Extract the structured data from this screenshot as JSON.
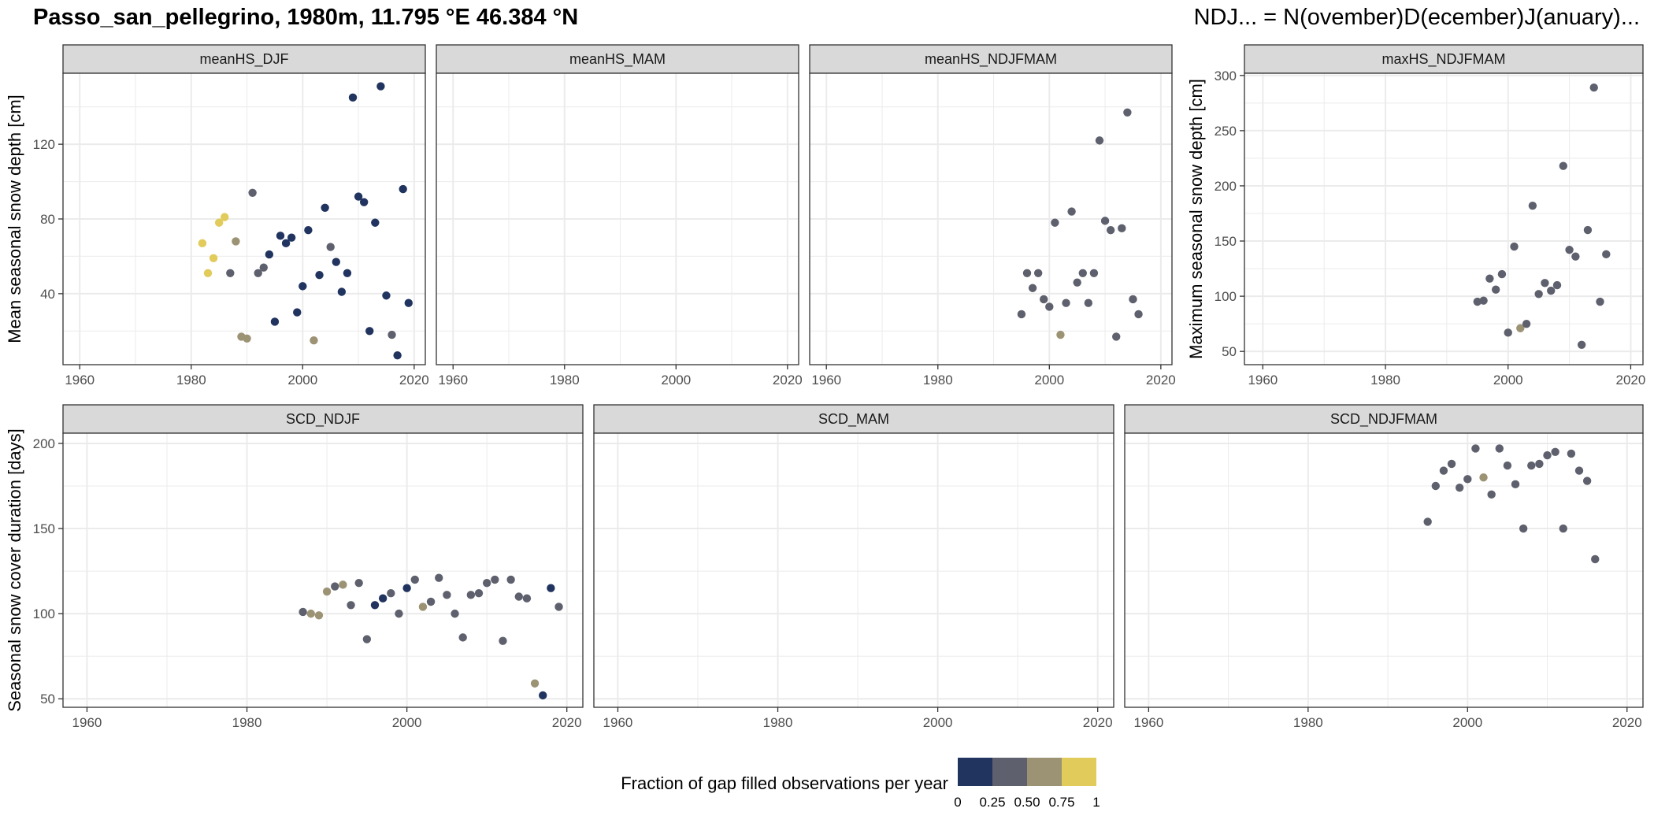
{
  "title": "Passo_san_pellegrino, 1980m, 11.795 °E 46.384 °N",
  "note": "NDJ... = N(ovember)D(ecember)J(anuary)...",
  "legend": {
    "title": "Fraction of gap filled observations per year",
    "ticks": [
      "0",
      "0.25",
      "0.50",
      "0.75",
      "1"
    ],
    "colors": [
      "#213460",
      "#5e616d",
      "#9c9274",
      "#e1cb5b"
    ]
  },
  "colors": {
    "c0": "#213460",
    "c1": "#5e616d",
    "c2": "#9c9274",
    "c3": "#e1cb5b",
    "strip_bg": "#d9d9d9",
    "grid": "#ebebeb"
  },
  "chart_data": [
    {
      "type": "scatter",
      "panel": "meanHS_DJF",
      "ylabel": "Mean seasonal snow depth [cm]",
      "xlim": [
        1957,
        2022
      ],
      "ylim": [
        2,
        158
      ],
      "xticks": [
        1960,
        1980,
        2000,
        2020
      ],
      "yticks": [
        40,
        80,
        120
      ],
      "points": [
        {
          "x": 1982,
          "y": 67,
          "c": 3
        },
        {
          "x": 1983,
          "y": 51,
          "c": 3
        },
        {
          "x": 1984,
          "y": 59,
          "c": 3
        },
        {
          "x": 1985,
          "y": 78,
          "c": 3
        },
        {
          "x": 1986,
          "y": 81,
          "c": 3
        },
        {
          "x": 1987,
          "y": 51,
          "c": 1
        },
        {
          "x": 1988,
          "y": 68,
          "c": 2
        },
        {
          "x": 1989,
          "y": 17,
          "c": 2
        },
        {
          "x": 1990,
          "y": 16,
          "c": 2
        },
        {
          "x": 1991,
          "y": 94,
          "c": 1
        },
        {
          "x": 1992,
          "y": 51,
          "c": 1
        },
        {
          "x": 1993,
          "y": 54,
          "c": 1
        },
        {
          "x": 1994,
          "y": 61,
          "c": 0
        },
        {
          "x": 1995,
          "y": 25,
          "c": 0
        },
        {
          "x": 1996,
          "y": 71,
          "c": 0
        },
        {
          "x": 1997,
          "y": 67,
          "c": 0
        },
        {
          "x": 1998,
          "y": 70,
          "c": 0
        },
        {
          "x": 1999,
          "y": 30,
          "c": 0
        },
        {
          "x": 2000,
          "y": 44,
          "c": 0
        },
        {
          "x": 2001,
          "y": 74,
          "c": 0
        },
        {
          "x": 2002,
          "y": 15,
          "c": 2
        },
        {
          "x": 2003,
          "y": 50,
          "c": 0
        },
        {
          "x": 2004,
          "y": 86,
          "c": 0
        },
        {
          "x": 2005,
          "y": 65,
          "c": 1
        },
        {
          "x": 2006,
          "y": 57,
          "c": 0
        },
        {
          "x": 2007,
          "y": 41,
          "c": 0
        },
        {
          "x": 2008,
          "y": 51,
          "c": 0
        },
        {
          "x": 2009,
          "y": 145,
          "c": 0
        },
        {
          "x": 2010,
          "y": 92,
          "c": 0
        },
        {
          "x": 2011,
          "y": 89,
          "c": 0
        },
        {
          "x": 2012,
          "y": 20,
          "c": 0
        },
        {
          "x": 2013,
          "y": 78,
          "c": 0
        },
        {
          "x": 2014,
          "y": 151,
          "c": 0
        },
        {
          "x": 2015,
          "y": 39,
          "c": 0
        },
        {
          "x": 2016,
          "y": 18,
          "c": 1
        },
        {
          "x": 2017,
          "y": 7,
          "c": 0
        },
        {
          "x": 2018,
          "y": 96,
          "c": 0
        },
        {
          "x": 2019,
          "y": 35,
          "c": 0
        }
      ]
    },
    {
      "type": "scatter",
      "panel": "meanHS_MAM",
      "xlim": [
        1957,
        2022
      ],
      "ylim": [
        2,
        158
      ],
      "xticks": [
        1960,
        1980,
        2000,
        2020
      ],
      "yticks": [
        40,
        80,
        120
      ],
      "points": []
    },
    {
      "type": "scatter",
      "panel": "meanHS_NDJFMAM",
      "xlim": [
        1957,
        2022
      ],
      "ylim": [
        2,
        158
      ],
      "xticks": [
        1960,
        1980,
        2000,
        2020
      ],
      "yticks": [
        40,
        80,
        120
      ],
      "points": [
        {
          "x": 1995,
          "y": 29,
          "c": 1
        },
        {
          "x": 1996,
          "y": 51,
          "c": 1
        },
        {
          "x": 1997,
          "y": 43,
          "c": 1
        },
        {
          "x": 1998,
          "y": 51,
          "c": 1
        },
        {
          "x": 1999,
          "y": 37,
          "c": 1
        },
        {
          "x": 2000,
          "y": 33,
          "c": 1
        },
        {
          "x": 2001,
          "y": 78,
          "c": 1
        },
        {
          "x": 2002,
          "y": 18,
          "c": 2
        },
        {
          "x": 2003,
          "y": 35,
          "c": 1
        },
        {
          "x": 2004,
          "y": 84,
          "c": 1
        },
        {
          "x": 2005,
          "y": 46,
          "c": 1
        },
        {
          "x": 2006,
          "y": 51,
          "c": 1
        },
        {
          "x": 2007,
          "y": 35,
          "c": 1
        },
        {
          "x": 2008,
          "y": 51,
          "c": 1
        },
        {
          "x": 2009,
          "y": 122,
          "c": 1
        },
        {
          "x": 2010,
          "y": 79,
          "c": 1
        },
        {
          "x": 2011,
          "y": 74,
          "c": 1
        },
        {
          "x": 2012,
          "y": 17,
          "c": 1
        },
        {
          "x": 2013,
          "y": 75,
          "c": 1
        },
        {
          "x": 2014,
          "y": 137,
          "c": 1
        },
        {
          "x": 2015,
          "y": 37,
          "c": 1
        },
        {
          "x": 2016,
          "y": 29,
          "c": 1
        }
      ]
    },
    {
      "type": "scatter",
      "panel": "maxHS_NDJFMAM",
      "ylabel": "Maximum seasonal snow depth [cm]",
      "xlim": [
        1957,
        2022
      ],
      "ylim": [
        38,
        302
      ],
      "xticks": [
        1960,
        1980,
        2000,
        2020
      ],
      "yticks": [
        50,
        100,
        150,
        200,
        250,
        300
      ],
      "points": [
        {
          "x": 1995,
          "y": 95,
          "c": 1
        },
        {
          "x": 1996,
          "y": 96,
          "c": 1
        },
        {
          "x": 1997,
          "y": 116,
          "c": 1
        },
        {
          "x": 1998,
          "y": 106,
          "c": 1
        },
        {
          "x": 1999,
          "y": 120,
          "c": 1
        },
        {
          "x": 2000,
          "y": 67,
          "c": 1
        },
        {
          "x": 2001,
          "y": 145,
          "c": 1
        },
        {
          "x": 2002,
          "y": 71,
          "c": 2
        },
        {
          "x": 2003,
          "y": 75,
          "c": 1
        },
        {
          "x": 2004,
          "y": 182,
          "c": 1
        },
        {
          "x": 2005,
          "y": 102,
          "c": 1
        },
        {
          "x": 2006,
          "y": 112,
          "c": 1
        },
        {
          "x": 2007,
          "y": 105,
          "c": 1
        },
        {
          "x": 2008,
          "y": 110,
          "c": 1
        },
        {
          "x": 2009,
          "y": 218,
          "c": 1
        },
        {
          "x": 2010,
          "y": 142,
          "c": 1
        },
        {
          "x": 2011,
          "y": 136,
          "c": 1
        },
        {
          "x": 2012,
          "y": 56,
          "c": 1
        },
        {
          "x": 2013,
          "y": 160,
          "c": 1
        },
        {
          "x": 2014,
          "y": 289,
          "c": 1
        },
        {
          "x": 2015,
          "y": 95,
          "c": 1
        },
        {
          "x": 2016,
          "y": 138,
          "c": 1
        }
      ]
    },
    {
      "type": "scatter",
      "panel": "SCD_NDJF",
      "ylabel": "Seasonal snow cover duration [days]",
      "xlim": [
        1957,
        2022
      ],
      "ylim": [
        45,
        206
      ],
      "xticks": [
        1960,
        1980,
        2000,
        2020
      ],
      "yticks": [
        50,
        100,
        150,
        200
      ],
      "points": [
        {
          "x": 1987,
          "y": 101,
          "c": 1
        },
        {
          "x": 1988,
          "y": 100,
          "c": 2
        },
        {
          "x": 1989,
          "y": 99,
          "c": 2
        },
        {
          "x": 1990,
          "y": 113,
          "c": 2
        },
        {
          "x": 1991,
          "y": 116,
          "c": 1
        },
        {
          "x": 1992,
          "y": 117,
          "c": 2
        },
        {
          "x": 1993,
          "y": 105,
          "c": 1
        },
        {
          "x": 1994,
          "y": 118,
          "c": 1
        },
        {
          "x": 1995,
          "y": 85,
          "c": 1
        },
        {
          "x": 1996,
          "y": 105,
          "c": 0
        },
        {
          "x": 1997,
          "y": 109,
          "c": 0
        },
        {
          "x": 1998,
          "y": 112,
          "c": 1
        },
        {
          "x": 1999,
          "y": 100,
          "c": 1
        },
        {
          "x": 2000,
          "y": 115,
          "c": 0
        },
        {
          "x": 2001,
          "y": 120,
          "c": 1
        },
        {
          "x": 2002,
          "y": 104,
          "c": 2
        },
        {
          "x": 2003,
          "y": 107,
          "c": 1
        },
        {
          "x": 2004,
          "y": 121,
          "c": 1
        },
        {
          "x": 2005,
          "y": 111,
          "c": 1
        },
        {
          "x": 2006,
          "y": 100,
          "c": 1
        },
        {
          "x": 2007,
          "y": 86,
          "c": 1
        },
        {
          "x": 2008,
          "y": 111,
          "c": 1
        },
        {
          "x": 2009,
          "y": 112,
          "c": 1
        },
        {
          "x": 2010,
          "y": 118,
          "c": 1
        },
        {
          "x": 2011,
          "y": 120,
          "c": 1
        },
        {
          "x": 2012,
          "y": 84,
          "c": 1
        },
        {
          "x": 2013,
          "y": 120,
          "c": 1
        },
        {
          "x": 2014,
          "y": 110,
          "c": 1
        },
        {
          "x": 2015,
          "y": 109,
          "c": 1
        },
        {
          "x": 2016,
          "y": 59,
          "c": 2
        },
        {
          "x": 2017,
          "y": 52,
          "c": 0
        },
        {
          "x": 2018,
          "y": 115,
          "c": 0
        },
        {
          "x": 2019,
          "y": 104,
          "c": 1
        }
      ]
    },
    {
      "type": "scatter",
      "panel": "SCD_MAM",
      "xlim": [
        1957,
        2022
      ],
      "ylim": [
        45,
        206
      ],
      "xticks": [
        1960,
        1980,
        2000,
        2020
      ],
      "yticks": [
        50,
        100,
        150,
        200
      ],
      "points": []
    },
    {
      "type": "scatter",
      "panel": "SCD_NDJFMAM",
      "xlim": [
        1957,
        2022
      ],
      "ylim": [
        45,
        206
      ],
      "xticks": [
        1960,
        1980,
        2000,
        2020
      ],
      "yticks": [
        50,
        100,
        150,
        200
      ],
      "points": [
        {
          "x": 1995,
          "y": 154,
          "c": 1
        },
        {
          "x": 1996,
          "y": 175,
          "c": 1
        },
        {
          "x": 1997,
          "y": 184,
          "c": 1
        },
        {
          "x": 1998,
          "y": 188,
          "c": 1
        },
        {
          "x": 1999,
          "y": 174,
          "c": 1
        },
        {
          "x": 2000,
          "y": 179,
          "c": 1
        },
        {
          "x": 2001,
          "y": 197,
          "c": 1
        },
        {
          "x": 2002,
          "y": 180,
          "c": 2
        },
        {
          "x": 2003,
          "y": 170,
          "c": 1
        },
        {
          "x": 2004,
          "y": 197,
          "c": 1
        },
        {
          "x": 2005,
          "y": 187,
          "c": 1
        },
        {
          "x": 2006,
          "y": 176,
          "c": 1
        },
        {
          "x": 2007,
          "y": 150,
          "c": 1
        },
        {
          "x": 2008,
          "y": 187,
          "c": 1
        },
        {
          "x": 2009,
          "y": 188,
          "c": 1
        },
        {
          "x": 2010,
          "y": 193,
          "c": 1
        },
        {
          "x": 2011,
          "y": 195,
          "c": 1
        },
        {
          "x": 2012,
          "y": 150,
          "c": 1
        },
        {
          "x": 2013,
          "y": 194,
          "c": 1
        },
        {
          "x": 2014,
          "y": 184,
          "c": 1
        },
        {
          "x": 2015,
          "y": 178,
          "c": 1
        },
        {
          "x": 2016,
          "y": 132,
          "c": 1
        }
      ]
    }
  ]
}
